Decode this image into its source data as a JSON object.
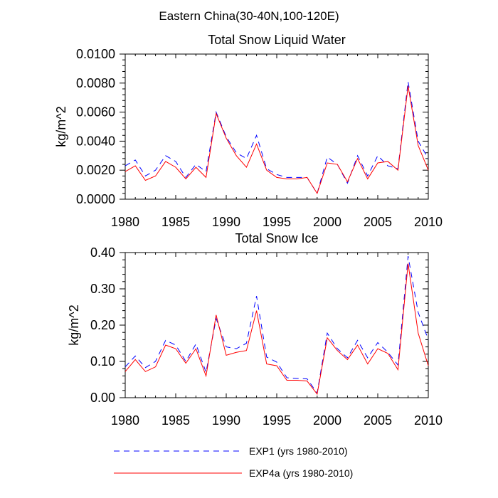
{
  "figure_title": "Eastern China(30-40N,100-120E)",
  "legend": [
    {
      "label": "EXP1 (yrs 1980-2010)",
      "color": "#0000ff",
      "dash": "8,6"
    },
    {
      "label": "EXP4a (yrs 1980-2010)",
      "color": "#ff0000",
      "dash": ""
    }
  ],
  "chart_data": [
    {
      "type": "line",
      "title": "Total Snow Liquid Water",
      "xlabel": "",
      "ylabel": "kg/m^2",
      "xlim": [
        1980,
        2010
      ],
      "ylim": [
        0,
        0.01
      ],
      "xticks": [
        1980,
        1985,
        1990,
        1995,
        2000,
        2005,
        2010
      ],
      "xtick_labels": [
        "1980",
        "1985",
        "1990",
        "1995",
        "2000",
        "2005",
        "2010"
      ],
      "yticks": [
        0,
        0.002,
        0.004,
        0.006,
        0.008,
        0.01
      ],
      "ytick_labels": [
        "0.0000",
        "0.0020",
        "0.0040",
        "0.0060",
        "0.0080",
        "0.0100"
      ],
      "x": [
        1980,
        1981,
        1982,
        1983,
        1984,
        1985,
        1986,
        1987,
        1988,
        1989,
        1990,
        1991,
        1992,
        1993,
        1994,
        1995,
        1996,
        1997,
        1998,
        1999,
        2000,
        2001,
        2002,
        2003,
        2004,
        2005,
        2006,
        2007,
        2008,
        2009,
        2010
      ],
      "series": [
        {
          "name": "EXP1 (yrs 1980-2010)",
          "values": [
            0.0023,
            0.0027,
            0.0016,
            0.002,
            0.003,
            0.0026,
            0.0015,
            0.0024,
            0.0019,
            0.006,
            0.0043,
            0.0032,
            0.0028,
            0.0044,
            0.0021,
            0.0017,
            0.0015,
            0.0015,
            0.0015,
            0.0004,
            0.0029,
            0.0024,
            0.0011,
            0.003,
            0.0016,
            0.003,
            0.0023,
            0.0021,
            0.0081,
            0.004,
            0.0028
          ]
        },
        {
          "name": "EXP4a (yrs 1980-2010)",
          "values": [
            0.0019,
            0.0023,
            0.0013,
            0.0016,
            0.0026,
            0.0022,
            0.0014,
            0.0022,
            0.0015,
            0.0059,
            0.0042,
            0.003,
            0.0022,
            0.0038,
            0.002,
            0.0015,
            0.0014,
            0.0014,
            0.0015,
            0.0004,
            0.0025,
            0.0024,
            0.0012,
            0.0028,
            0.0014,
            0.0025,
            0.0026,
            0.002,
            0.0078,
            0.0037,
            0.002
          ]
        }
      ]
    },
    {
      "type": "line",
      "title": "Total Snow Ice",
      "xlabel": "",
      "ylabel": "kg/m^2",
      "xlim": [
        1980,
        2010
      ],
      "ylim": [
        0,
        0.4
      ],
      "xticks": [
        1980,
        1985,
        1990,
        1995,
        2000,
        2005,
        2010
      ],
      "xtick_labels": [
        "1980",
        "1985",
        "1990",
        "1995",
        "2000",
        "2005",
        "2010"
      ],
      "yticks": [
        0,
        0.1,
        0.2,
        0.3,
        0.4
      ],
      "ytick_labels": [
        "0.00",
        "0.10",
        "0.20",
        "0.30",
        "0.40"
      ],
      "x": [
        1980,
        1981,
        1982,
        1983,
        1984,
        1985,
        1986,
        1987,
        1988,
        1989,
        1990,
        1991,
        1992,
        1993,
        1994,
        1995,
        1996,
        1997,
        1998,
        1999,
        2000,
        2001,
        2002,
        2003,
        2004,
        2005,
        2006,
        2007,
        2008,
        2009,
        2010
      ],
      "series": [
        {
          "name": "EXP1 (yrs 1980-2010)",
          "values": [
            0.085,
            0.115,
            0.083,
            0.1,
            0.158,
            0.145,
            0.1,
            0.148,
            0.07,
            0.218,
            0.14,
            0.135,
            0.15,
            0.28,
            0.112,
            0.098,
            0.055,
            0.053,
            0.052,
            0.013,
            0.178,
            0.135,
            0.11,
            0.158,
            0.11,
            0.152,
            0.125,
            0.09,
            0.39,
            0.235,
            0.16
          ]
        },
        {
          "name": "EXP4a (yrs 1980-2010)",
          "values": [
            0.072,
            0.105,
            0.072,
            0.085,
            0.145,
            0.135,
            0.095,
            0.135,
            0.06,
            0.228,
            0.117,
            0.125,
            0.13,
            0.24,
            0.093,
            0.088,
            0.048,
            0.048,
            0.046,
            0.01,
            0.165,
            0.13,
            0.105,
            0.145,
            0.093,
            0.135,
            0.122,
            0.077,
            0.37,
            0.178,
            0.088
          ]
        }
      ]
    }
  ]
}
